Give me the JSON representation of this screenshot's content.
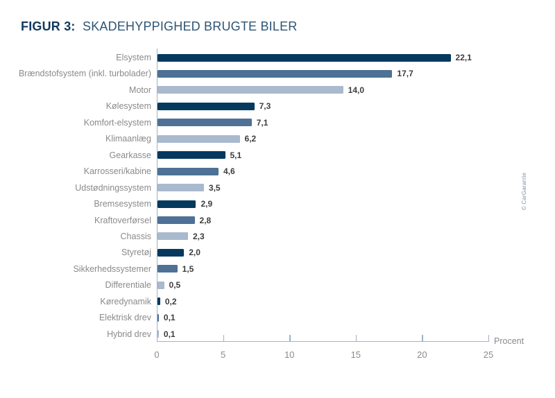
{
  "title": {
    "prefix": "FIGUR 3:",
    "text": "SKADEHYPPIGHED BRUGTE BILER"
  },
  "credit": "© CarGarantie",
  "chart_data": {
    "type": "bar",
    "orientation": "horizontal",
    "title": "FIGUR 3: SKADEHYPPIGHED BRUGTE BILER",
    "categories": [
      "Elsystem",
      "Brændstofsystem (inkl. turbolader)",
      "Motor",
      "Kølesystem",
      "Komfort-elsystem",
      "Klimaanlæg",
      "Gearkasse",
      "Karrosseri/kabine",
      "Udstødningssystem",
      "Bremsesystem",
      "Kraftoverførsel",
      "Chassis",
      "Styretøj",
      "Sikkerhedssystemer",
      "Differentiale",
      "Køredynamik",
      "Elektrisk drev",
      "Hybrid drev"
    ],
    "values": [
      22.1,
      17.7,
      14.0,
      7.3,
      7.1,
      6.2,
      5.1,
      4.6,
      3.5,
      2.9,
      2.8,
      2.3,
      2.0,
      1.5,
      0.5,
      0.2,
      0.1,
      0.1
    ],
    "value_labels": [
      "22,1",
      "17,7",
      "14,0",
      "7,3",
      "7,1",
      "6,2",
      "5,1",
      "4,6",
      "3,5",
      "2,9",
      "2,8",
      "2,3",
      "2,0",
      "1,5",
      "0,5",
      "0,2",
      "0,1",
      "0,1"
    ],
    "xlabel": "Procent",
    "x_ticks": [
      0,
      5,
      10,
      15,
      20,
      25
    ],
    "xlim": [
      0,
      25
    ],
    "grid": false,
    "legend": false,
    "bar_colors_cycle": [
      "#05395e",
      "#4e7195",
      "#a9b9ce"
    ],
    "axis_color": "#9fb2c5",
    "category_label_color": "#8a8a8a",
    "value_label_color": "#3c3c3c"
  }
}
